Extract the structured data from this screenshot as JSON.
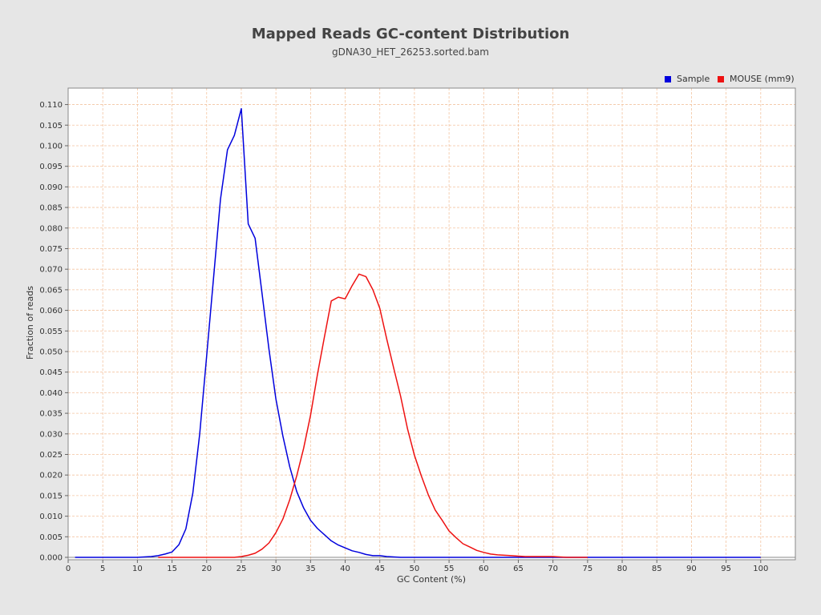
{
  "chart_data": {
    "type": "line",
    "title": "Mapped Reads GC-content Distribution",
    "subtitle": "gDNA30_HET_26253.sorted.bam",
    "xlabel": "GC Content (%)",
    "ylabel": "Fraction of reads",
    "xlim": [
      0,
      105
    ],
    "ylim": [
      0,
      0.114
    ],
    "x_ticks": [
      "0",
      "5",
      "10",
      "15",
      "20",
      "25",
      "30",
      "35",
      "40",
      "45",
      "50",
      "55",
      "60",
      "65",
      "70",
      "75",
      "80",
      "85",
      "90",
      "95",
      "100"
    ],
    "y_ticks": [
      "0.000",
      "0.005",
      "0.010",
      "0.015",
      "0.020",
      "0.025",
      "0.030",
      "0.035",
      "0.040",
      "0.045",
      "0.050",
      "0.055",
      "0.060",
      "0.065",
      "0.070",
      "0.075",
      "0.080",
      "0.085",
      "0.090",
      "0.095",
      "0.100",
      "0.105",
      "0.110"
    ],
    "grid": true,
    "legend_position": "top-right",
    "series": [
      {
        "name": "Sample",
        "color": "#0000dd",
        "points": [
          [
            1,
            0
          ],
          [
            5,
            0
          ],
          [
            10,
            0
          ],
          [
            11,
            0.0001
          ],
          [
            12,
            0.0002
          ],
          [
            13,
            0.0004
          ],
          [
            14,
            0.0008
          ],
          [
            15,
            0.0013
          ],
          [
            16,
            0.0031
          ],
          [
            17,
            0.0069
          ],
          [
            18,
            0.0156
          ],
          [
            19,
            0.03
          ],
          [
            20,
            0.049
          ],
          [
            21,
            0.068
          ],
          [
            22,
            0.087
          ],
          [
            23,
            0.099
          ],
          [
            24,
            0.1025
          ],
          [
            25,
            0.109
          ],
          [
            26,
            0.081
          ],
          [
            27,
            0.0775
          ],
          [
            28,
            0.064
          ],
          [
            29,
            0.0505
          ],
          [
            30,
            0.0385
          ],
          [
            31,
            0.0295
          ],
          [
            32,
            0.022
          ],
          [
            33,
            0.016
          ],
          [
            34,
            0.012
          ],
          [
            35,
            0.009
          ],
          [
            36,
            0.007
          ],
          [
            37,
            0.0055
          ],
          [
            38,
            0.004
          ],
          [
            39,
            0.003
          ],
          [
            40,
            0.0023
          ],
          [
            41,
            0.0016
          ],
          [
            42,
            0.0012
          ],
          [
            43,
            0.0007
          ],
          [
            44,
            0.0004
          ],
          [
            45,
            0.0004
          ],
          [
            46,
            0.0002
          ],
          [
            47,
            0.0001
          ],
          [
            48,
            0
          ],
          [
            50,
            0
          ],
          [
            60,
            0
          ],
          [
            70,
            0
          ],
          [
            80,
            0
          ],
          [
            90,
            0
          ],
          [
            100,
            0
          ]
        ]
      },
      {
        "name": "MOUSE (mm9)",
        "color": "#ee1111",
        "points": [
          [
            13,
            0
          ],
          [
            20,
            0
          ],
          [
            24,
            0
          ],
          [
            25,
            0.0002
          ],
          [
            26,
            0.0005
          ],
          [
            27,
            0.001
          ],
          [
            28,
            0.002
          ],
          [
            29,
            0.0035
          ],
          [
            30,
            0.006
          ],
          [
            31,
            0.0093
          ],
          [
            32,
            0.014
          ],
          [
            33,
            0.0198
          ],
          [
            34,
            0.0265
          ],
          [
            35,
            0.0345
          ],
          [
            36,
            0.0445
          ],
          [
            37,
            0.0535
          ],
          [
            38,
            0.0623
          ],
          [
            39,
            0.0632
          ],
          [
            40,
            0.0628
          ],
          [
            41,
            0.066
          ],
          [
            42,
            0.0688
          ],
          [
            43,
            0.0682
          ],
          [
            44,
            0.065
          ],
          [
            45,
            0.0605
          ],
          [
            46,
            0.053
          ],
          [
            47,
            0.046
          ],
          [
            48,
            0.0392
          ],
          [
            49,
            0.0312
          ],
          [
            50,
            0.0248
          ],
          [
            51,
            0.0198
          ],
          [
            52,
            0.0152
          ],
          [
            53,
            0.0115
          ],
          [
            54,
            0.009
          ],
          [
            55,
            0.0064
          ],
          [
            56,
            0.0048
          ],
          [
            57,
            0.0033
          ],
          [
            58,
            0.0025
          ],
          [
            59,
            0.0017
          ],
          [
            60,
            0.0012
          ],
          [
            61,
            0.0008
          ],
          [
            62,
            0.0006
          ],
          [
            63,
            0.0005
          ],
          [
            64,
            0.0004
          ],
          [
            65,
            0.0003
          ],
          [
            66,
            0.0002
          ],
          [
            68,
            0.0002
          ],
          [
            70,
            0.0002
          ],
          [
            71,
            0.0001
          ],
          [
            72,
            0
          ],
          [
            75,
            0
          ]
        ]
      }
    ]
  }
}
